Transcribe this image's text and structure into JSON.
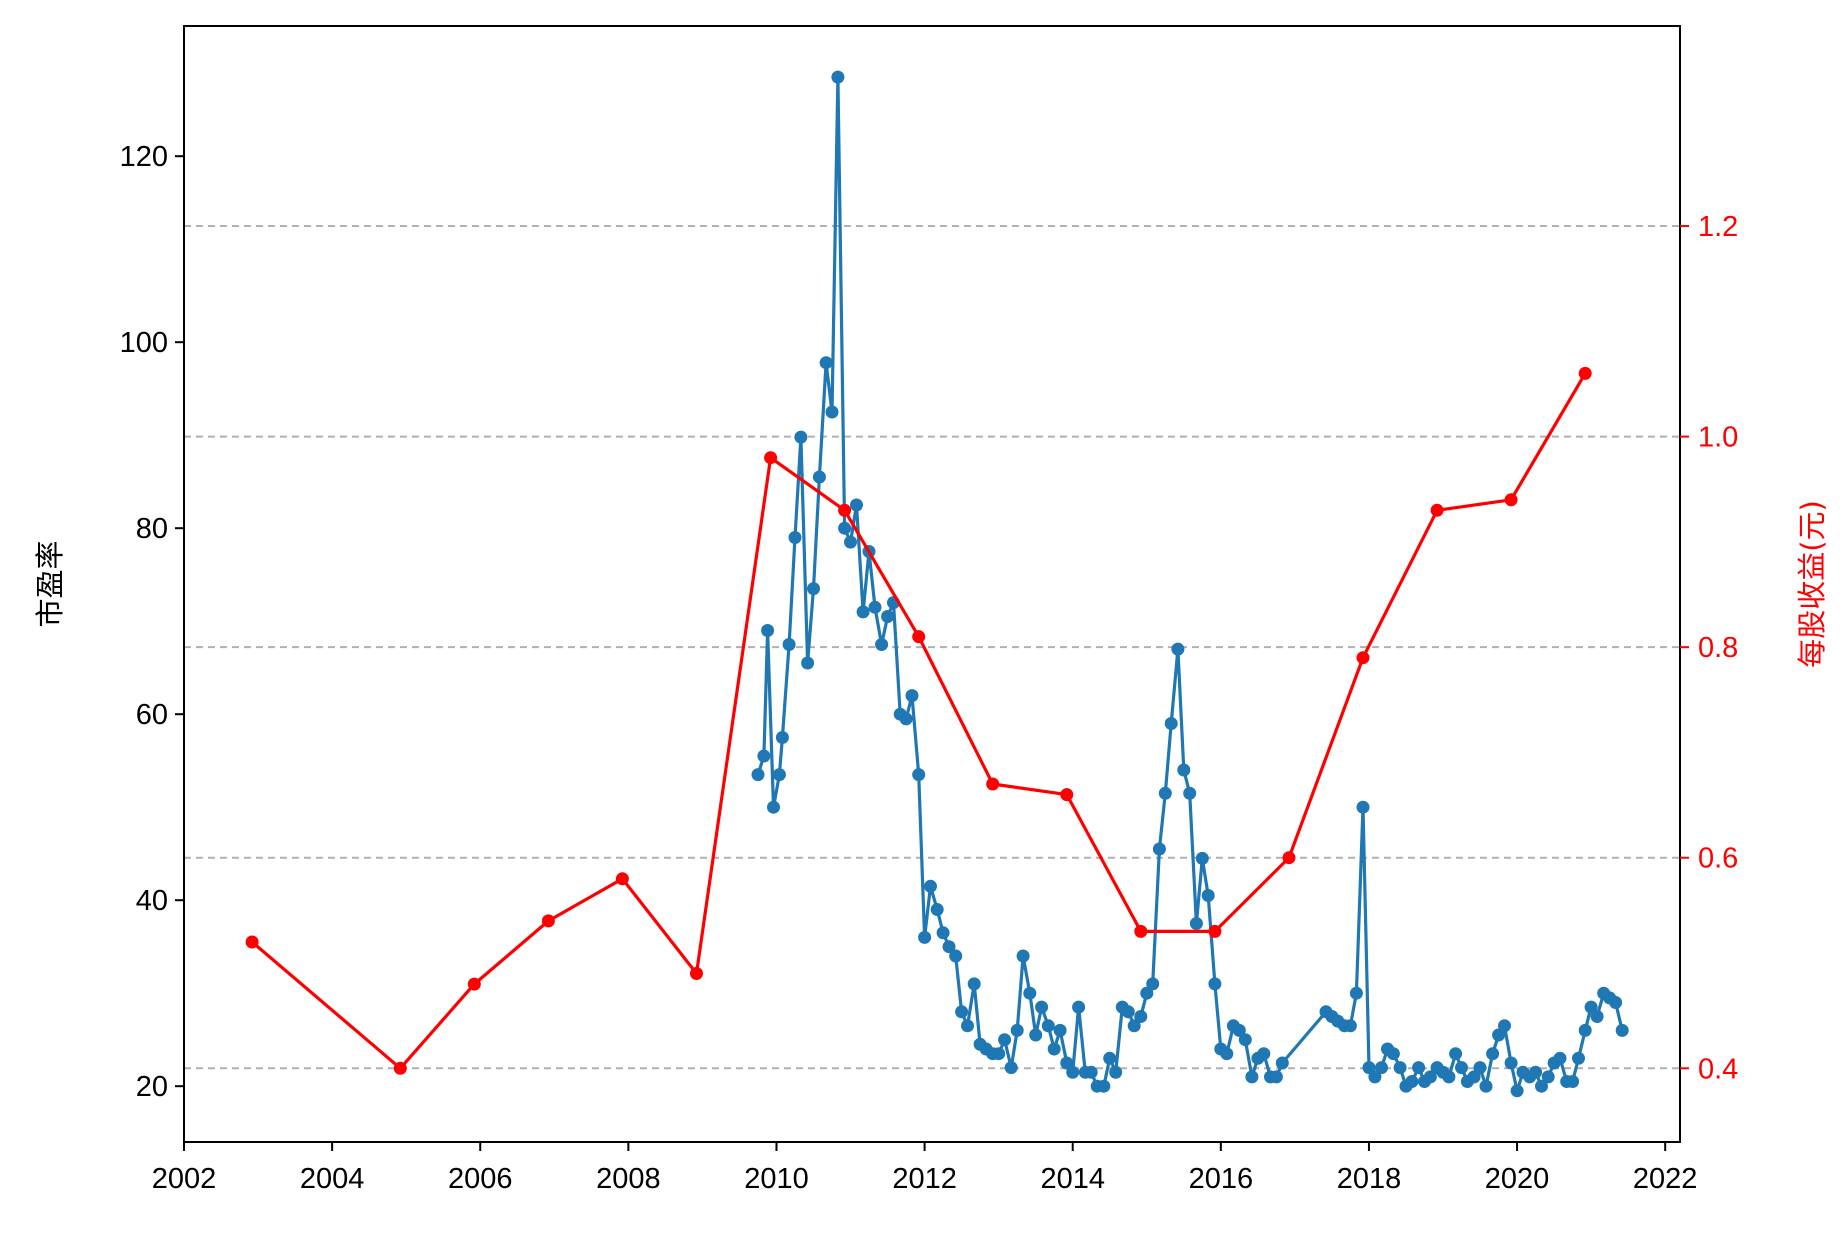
{
  "chart_data": {
    "type": "line",
    "title": "",
    "xlabel": "",
    "ylabel_left": "市盈率",
    "ylabel_right": "每股收益(元)",
    "xlim": [
      2002.0,
      2022.2
    ],
    "ylim_left": [
      14.0,
      134.0
    ],
    "ylim_right": [
      0.33,
      1.39
    ],
    "x_ticks": [
      2002,
      2004,
      2006,
      2008,
      2010,
      2012,
      2014,
      2016,
      2018,
      2020,
      2022
    ],
    "y_left_ticks": [
      20,
      40,
      60,
      80,
      100,
      120
    ],
    "y_right_ticks": [
      0.4,
      0.6,
      0.8,
      1.0,
      1.2
    ],
    "y_right_tick_labels": [
      "0.4",
      "0.6",
      "0.8",
      "1.0",
      "1.2"
    ],
    "grid": "horizontal dashed lines at right-axis ticks",
    "colors": {
      "pe": "#1f77b4",
      "eps": "#ff0000",
      "grid": "#b0b0b0",
      "axis": "#000000"
    },
    "series": [
      {
        "axis": "left",
        "color": "#1f77b4",
        "points": [
          [
            2009.75,
            53.5
          ],
          [
            2009.83,
            55.5
          ],
          [
            2009.88,
            69.0
          ],
          [
            2009.96,
            50.0
          ],
          [
            2010.04,
            53.5
          ],
          [
            2010.08,
            57.5
          ],
          [
            2010.17,
            67.5
          ],
          [
            2010.25,
            79.0
          ],
          [
            2010.33,
            89.8
          ],
          [
            2010.42,
            65.5
          ],
          [
            2010.5,
            73.5
          ],
          [
            2010.58,
            85.5
          ],
          [
            2010.67,
            97.8
          ],
          [
            2010.75,
            92.5
          ],
          [
            2010.83,
            128.5
          ],
          [
            2010.92,
            80.0
          ],
          [
            2011.0,
            78.5
          ],
          [
            2011.08,
            82.5
          ],
          [
            2011.17,
            71.0
          ],
          [
            2011.25,
            77.5
          ],
          [
            2011.33,
            71.5
          ],
          [
            2011.42,
            67.5
          ],
          [
            2011.5,
            70.5
          ],
          [
            2011.58,
            72.0
          ],
          [
            2011.67,
            60.0
          ],
          [
            2011.75,
            59.5
          ],
          [
            2011.83,
            62.0
          ],
          [
            2011.92,
            53.5
          ],
          [
            2012.0,
            36.0
          ],
          [
            2012.08,
            41.5
          ],
          [
            2012.17,
            39.0
          ],
          [
            2012.25,
            36.5
          ],
          [
            2012.33,
            35.0
          ],
          [
            2012.42,
            34.0
          ],
          [
            2012.5,
            28.0
          ],
          [
            2012.58,
            26.5
          ],
          [
            2012.67,
            31.0
          ],
          [
            2012.75,
            24.5
          ],
          [
            2012.83,
            24.0
          ],
          [
            2012.92,
            23.5
          ],
          [
            2013.0,
            23.5
          ],
          [
            2013.08,
            25.0
          ],
          [
            2013.17,
            22.0
          ],
          [
            2013.25,
            26.0
          ],
          [
            2013.33,
            34.0
          ],
          [
            2013.42,
            30.0
          ],
          [
            2013.5,
            25.5
          ],
          [
            2013.58,
            28.5
          ],
          [
            2013.67,
            26.5
          ],
          [
            2013.75,
            24.0
          ],
          [
            2013.83,
            26.0
          ],
          [
            2013.92,
            22.5
          ],
          [
            2014.0,
            21.5
          ],
          [
            2014.08,
            28.5
          ],
          [
            2014.17,
            21.5
          ],
          [
            2014.25,
            21.5
          ],
          [
            2014.33,
            20.0
          ],
          [
            2014.42,
            20.0
          ],
          [
            2014.5,
            23.0
          ],
          [
            2014.58,
            21.5
          ],
          [
            2014.67,
            28.5
          ],
          [
            2014.75,
            28.0
          ],
          [
            2014.83,
            26.5
          ],
          [
            2014.92,
            27.5
          ],
          [
            2015.0,
            30.0
          ],
          [
            2015.08,
            31.0
          ],
          [
            2015.17,
            45.5
          ],
          [
            2015.25,
            51.5
          ],
          [
            2015.33,
            59.0
          ],
          [
            2015.42,
            67.0
          ],
          [
            2015.5,
            54.0
          ],
          [
            2015.58,
            51.5
          ],
          [
            2015.67,
            37.5
          ],
          [
            2015.75,
            44.5
          ],
          [
            2015.83,
            40.5
          ],
          [
            2015.92,
            31.0
          ],
          [
            2016.0,
            24.0
          ],
          [
            2016.08,
            23.5
          ],
          [
            2016.17,
            26.5
          ],
          [
            2016.25,
            26.0
          ],
          [
            2016.33,
            25.0
          ],
          [
            2016.42,
            21.0
          ],
          [
            2016.5,
            23.0
          ],
          [
            2016.58,
            23.5
          ],
          [
            2016.67,
            21.0
          ],
          [
            2016.75,
            21.0
          ],
          [
            2016.83,
            22.5
          ],
          [
            2017.42,
            28.0
          ],
          [
            2017.5,
            27.5
          ],
          [
            2017.58,
            27.0
          ],
          [
            2017.67,
            26.5
          ],
          [
            2017.75,
            26.5
          ],
          [
            2017.83,
            30.0
          ],
          [
            2017.92,
            50.0
          ],
          [
            2018.0,
            22.0
          ],
          [
            2018.08,
            21.0
          ],
          [
            2018.17,
            22.0
          ],
          [
            2018.25,
            24.0
          ],
          [
            2018.33,
            23.5
          ],
          [
            2018.42,
            22.0
          ],
          [
            2018.5,
            20.0
          ],
          [
            2018.58,
            20.5
          ],
          [
            2018.67,
            22.0
          ],
          [
            2018.75,
            20.5
          ],
          [
            2018.83,
            21.0
          ],
          [
            2018.92,
            22.0
          ],
          [
            2019.0,
            21.5
          ],
          [
            2019.08,
            21.0
          ],
          [
            2019.17,
            23.5
          ],
          [
            2019.25,
            22.0
          ],
          [
            2019.33,
            20.5
          ],
          [
            2019.42,
            21.0
          ],
          [
            2019.5,
            22.0
          ],
          [
            2019.58,
            20.0
          ],
          [
            2019.67,
            23.5
          ],
          [
            2019.75,
            25.5
          ],
          [
            2019.83,
            26.5
          ],
          [
            2019.92,
            22.5
          ],
          [
            2020.0,
            19.5
          ],
          [
            2020.08,
            21.5
          ],
          [
            2020.17,
            21.0
          ],
          [
            2020.25,
            21.5
          ],
          [
            2020.33,
            20.0
          ],
          [
            2020.42,
            21.0
          ],
          [
            2020.5,
            22.5
          ],
          [
            2020.58,
            23.0
          ],
          [
            2020.67,
            20.5
          ],
          [
            2020.75,
            20.5
          ],
          [
            2020.83,
            23.0
          ],
          [
            2020.92,
            26.0
          ],
          [
            2021.0,
            28.5
          ],
          [
            2021.08,
            27.5
          ],
          [
            2021.17,
            30.0
          ],
          [
            2021.25,
            29.5
          ],
          [
            2021.33,
            29.0
          ],
          [
            2021.42,
            26.0
          ]
        ]
      },
      {
        "axis": "right",
        "color": "#ff0000",
        "points": [
          [
            2002.92,
            0.52
          ],
          [
            2004.92,
            0.4
          ],
          [
            2005.92,
            0.48
          ],
          [
            2006.92,
            0.54
          ],
          [
            2007.92,
            0.58
          ],
          [
            2008.92,
            0.49
          ],
          [
            2009.92,
            0.98
          ],
          [
            2010.92,
            0.93
          ],
          [
            2011.92,
            0.81
          ],
          [
            2012.92,
            0.67
          ],
          [
            2013.92,
            0.66
          ],
          [
            2014.92,
            0.53
          ],
          [
            2015.92,
            0.53
          ],
          [
            2016.92,
            0.6
          ],
          [
            2017.92,
            0.79
          ],
          [
            2018.92,
            0.93
          ],
          [
            2019.92,
            0.94
          ],
          [
            2020.92,
            1.06
          ]
        ]
      }
    ]
  }
}
